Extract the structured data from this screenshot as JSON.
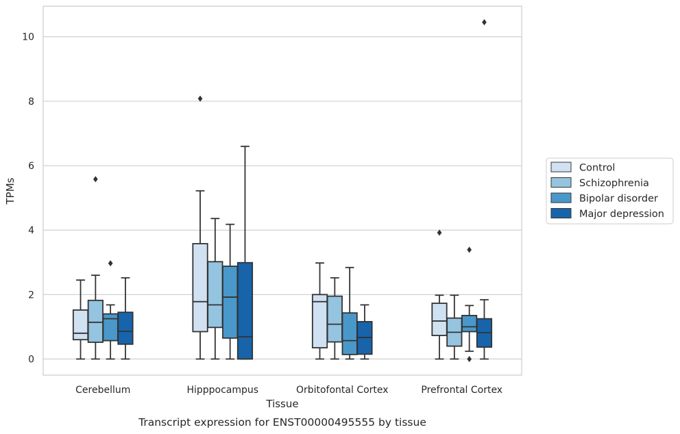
{
  "chart_data": {
    "type": "box",
    "title": "",
    "caption": "Transcript expression for ENST00000495555 by tissue",
    "xlabel": "Tissue",
    "ylabel": "TPMs",
    "ylim": [
      -0.5,
      10.95
    ],
    "yticks": [
      0,
      2,
      4,
      6,
      8,
      10
    ],
    "grid": "horizontal",
    "legend": "right",
    "categories": [
      "Cerebellum",
      "Hipppocampus",
      "Orbitofontal Cortex",
      "Prefrontal Cortex"
    ],
    "series": [
      {
        "name": "Control",
        "color": "#d0e1f2",
        "boxes": [
          {
            "whisker_low": 0.0,
            "q1": 0.6,
            "median": 0.8,
            "q3": 1.52,
            "whisker_high": 2.45,
            "outliers": []
          },
          {
            "whisker_low": 0.0,
            "q1": 0.85,
            "median": 1.78,
            "q3": 3.58,
            "whisker_high": 5.22,
            "outliers": [
              8.08
            ]
          },
          {
            "whisker_low": 0.0,
            "q1": 0.35,
            "median": 1.78,
            "q3": 2.0,
            "whisker_high": 2.98,
            "outliers": []
          },
          {
            "whisker_low": 0.0,
            "q1": 0.73,
            "median": 1.18,
            "q3": 1.73,
            "whisker_high": 1.98,
            "outliers": [
              3.92
            ]
          }
        ]
      },
      {
        "name": "Schizophrenia",
        "color": "#94c4df",
        "boxes": [
          {
            "whisker_low": 0.0,
            "q1": 0.52,
            "median": 1.14,
            "q3": 1.82,
            "whisker_high": 2.6,
            "outliers": [
              5.58
            ]
          },
          {
            "whisker_low": 0.0,
            "q1": 0.98,
            "median": 1.68,
            "q3": 3.02,
            "whisker_high": 4.36,
            "outliers": []
          },
          {
            "whisker_low": 0.0,
            "q1": 0.53,
            "median": 1.08,
            "q3": 1.95,
            "whisker_high": 2.52,
            "outliers": []
          },
          {
            "whisker_low": 0.0,
            "q1": 0.4,
            "median": 0.83,
            "q3": 1.27,
            "whisker_high": 1.98,
            "outliers": []
          }
        ]
      },
      {
        "name": "Bipolar disorder",
        "color": "#4a98c9",
        "boxes": [
          {
            "whisker_low": 0.0,
            "q1": 0.57,
            "median": 1.25,
            "q3": 1.4,
            "whisker_high": 1.68,
            "outliers": [
              2.97
            ]
          },
          {
            "whisker_low": 0.0,
            "q1": 0.65,
            "median": 1.92,
            "q3": 2.88,
            "whisker_high": 4.18,
            "outliers": []
          },
          {
            "whisker_low": 0.0,
            "q1": 0.14,
            "median": 0.57,
            "q3": 1.43,
            "whisker_high": 2.84,
            "outliers": []
          },
          {
            "whisker_low": 0.24,
            "q1": 0.85,
            "median": 1.0,
            "q3": 1.35,
            "whisker_high": 1.66,
            "outliers": [
              0.0,
              3.39
            ]
          }
        ]
      },
      {
        "name": "Major depression",
        "color": "#1764ab",
        "boxes": [
          {
            "whisker_low": 0.0,
            "q1": 0.46,
            "median": 0.86,
            "q3": 1.45,
            "whisker_high": 2.52,
            "outliers": []
          },
          {
            "whisker_low": 0.0,
            "q1": 0.0,
            "median": 0.69,
            "q3": 2.99,
            "whisker_high": 6.6,
            "outliers": []
          },
          {
            "whisker_low": 0.0,
            "q1": 0.15,
            "median": 0.67,
            "q3": 1.16,
            "whisker_high": 1.68,
            "outliers": []
          },
          {
            "whisker_low": 0.0,
            "q1": 0.37,
            "median": 0.82,
            "q3": 1.25,
            "whisker_high": 1.84,
            "outliers": [
              10.45
            ]
          }
        ]
      }
    ]
  }
}
